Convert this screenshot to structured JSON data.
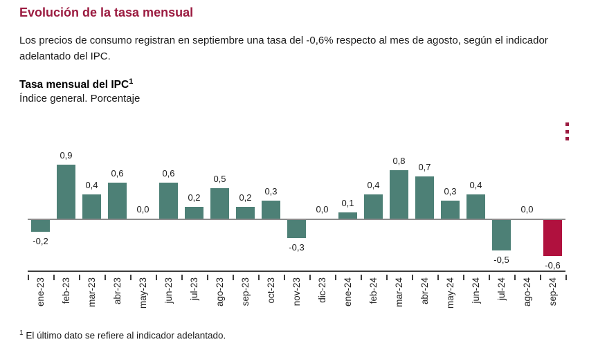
{
  "page": {
    "title": "Evolución de la tasa mensual",
    "intro": "Los precios de consumo registran en septiembre una tasa del -0,6% respecto al mes de agosto, según el indicador adelantado del IPC.",
    "footnote_marker": "1",
    "footnote_text": " El último dato se refiere al indicador adelantado."
  },
  "chart_header": {
    "title": "Tasa mensual del IPC",
    "title_superscript": "1",
    "subtitle": "Índice general. Porcentaje",
    "menu_icon": "kebab-vertical"
  },
  "colors": {
    "accent": "#9b1b40",
    "bar_positive": "#4d8076",
    "bar_highlight": "#b0113e",
    "axis": "#3c3c3c",
    "zero_line": "#8c8c8c"
  },
  "chart_data": {
    "type": "bar",
    "title": "Tasa mensual del IPC",
    "subtitle": "Índice general. Porcentaje",
    "unit": "%",
    "categories": [
      "ene-23",
      "feb-23",
      "mar-23",
      "abr-23",
      "may-23",
      "jun-23",
      "jul-23",
      "ago-23",
      "sep-23",
      "oct-23",
      "nov-23",
      "dic-23",
      "ene-24",
      "feb-24",
      "mar-24",
      "abr-24",
      "may-24",
      "jun-24",
      "jul-24",
      "ago-24",
      "sep-24"
    ],
    "values": [
      -0.2,
      0.9,
      0.4,
      0.6,
      0.0,
      0.6,
      0.2,
      0.5,
      0.2,
      0.3,
      -0.3,
      0.0,
      0.1,
      0.4,
      0.8,
      0.7,
      0.3,
      0.4,
      -0.5,
      0.0,
      -0.6
    ],
    "labels": [
      "-0,2",
      "0,9",
      "0,4",
      "0,6",
      "0,0",
      "0,6",
      "0,2",
      "0,5",
      "0,2",
      "0,3",
      "-0,3",
      "0,0",
      "0,1",
      "0,4",
      "0,8",
      "0,7",
      "0,3",
      "0,4",
      "-0,5",
      "0,0",
      "-0,6"
    ],
    "highlight_index": 20,
    "ylim": [
      -0.7,
      1.0
    ],
    "xlabel": "",
    "ylabel": "Porcentaje",
    "grid": false,
    "legend": false
  }
}
